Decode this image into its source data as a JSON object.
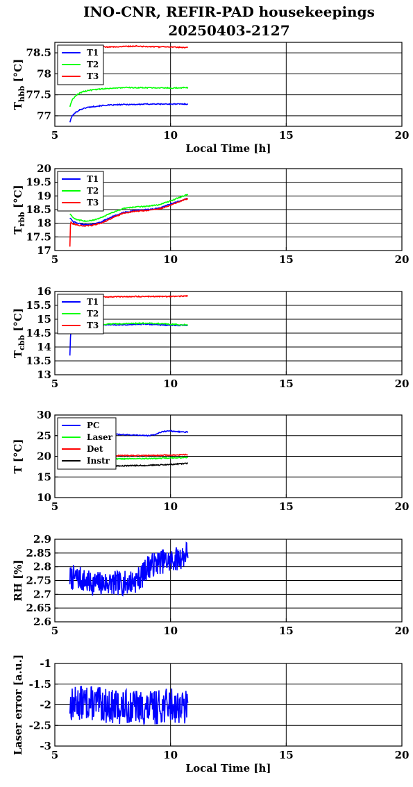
{
  "title_line1": "INO-CNR, REFIR-PAD housekeepings",
  "title_line2": "20250403-2127",
  "chart_data": [
    {
      "type": "line",
      "ylabel_main": "T",
      "ylabel_sub": "hbb",
      "ylabel_suffix": "[°C]",
      "xlabel": "Local Time [h]",
      "xlim": [
        5,
        20
      ],
      "xticks": [
        5,
        10,
        15,
        20
      ],
      "ylim": [
        76.75,
        78.75
      ],
      "yticks": [
        77,
        77.5,
        78,
        78.5
      ],
      "ytick_labels": [
        "77",
        "77.5",
        "78",
        "78.5"
      ],
      "grid": true,
      "legend_position": "top-left",
      "series": [
        {
          "name": "T1",
          "color": "#0000ff",
          "x": [
            5.65,
            5.75,
            5.9,
            6.1,
            6.4,
            6.8,
            7.2,
            7.6,
            8.0,
            8.5,
            9.0,
            9.5,
            10.0,
            10.5,
            10.75
          ],
          "y": [
            76.85,
            77.0,
            77.08,
            77.15,
            77.2,
            77.23,
            77.25,
            77.26,
            77.27,
            77.27,
            77.28,
            77.28,
            77.28,
            77.28,
            77.28
          ]
        },
        {
          "name": "T2",
          "color": "#00ff00",
          "x": [
            5.65,
            5.75,
            5.9,
            6.1,
            6.4,
            6.8,
            7.2,
            7.6,
            8.0,
            8.5,
            9.0,
            9.5,
            10.0,
            10.5,
            10.75
          ],
          "y": [
            77.22,
            77.38,
            77.48,
            77.55,
            77.6,
            77.63,
            77.65,
            77.66,
            77.67,
            77.67,
            77.67,
            77.67,
            77.66,
            77.67,
            77.67
          ]
        },
        {
          "name": "T3",
          "color": "#ff0000",
          "x": [
            5.65,
            6.0,
            6.5,
            7.0,
            7.5,
            8.0,
            8.5,
            9.0,
            9.5,
            10.0,
            10.5,
            10.75
          ],
          "y": [
            78.63,
            78.62,
            78.63,
            78.64,
            78.64,
            78.65,
            78.66,
            78.65,
            78.64,
            78.64,
            78.63,
            78.63
          ]
        }
      ]
    },
    {
      "type": "line",
      "ylabel_main": "T",
      "ylabel_sub": "rbb",
      "ylabel_suffix": "[°C]",
      "xlabel": "",
      "xlim": [
        5,
        20
      ],
      "xticks": [
        5,
        10,
        15,
        20
      ],
      "ylim": [
        17,
        20
      ],
      "yticks": [
        17,
        17.5,
        18,
        18.5,
        19,
        19.5,
        20
      ],
      "ytick_labels": [
        "17",
        "17.5",
        "18",
        "18.5",
        "19",
        "19.5",
        "20"
      ],
      "grid": true,
      "legend_position": "top-left",
      "series": [
        {
          "name": "T1",
          "color": "#0000ff",
          "x": [
            5.65,
            5.8,
            6.0,
            6.3,
            6.6,
            7.0,
            7.5,
            8.0,
            8.5,
            9.0,
            9.5,
            10.0,
            10.5,
            10.75
          ],
          "y": [
            18.2,
            18.05,
            18.0,
            17.95,
            17.95,
            18.05,
            18.25,
            18.4,
            18.47,
            18.5,
            18.55,
            18.7,
            18.85,
            18.92
          ]
        },
        {
          "name": "T2",
          "color": "#00ff00",
          "x": [
            5.65,
            5.8,
            6.0,
            6.3,
            6.6,
            7.0,
            7.5,
            8.0,
            8.5,
            9.0,
            9.5,
            10.0,
            10.5,
            10.75
          ],
          "y": [
            18.35,
            18.2,
            18.12,
            18.08,
            18.1,
            18.2,
            18.4,
            18.55,
            18.6,
            18.62,
            18.68,
            18.82,
            18.98,
            19.05
          ]
        },
        {
          "name": "T3",
          "color": "#ff0000",
          "x": [
            5.65,
            5.68,
            5.72,
            5.8,
            6.0,
            6.3,
            6.6,
            7.0,
            7.5,
            8.0,
            8.5,
            9.0,
            9.5,
            10.0,
            10.5,
            10.75
          ],
          "y": [
            17.15,
            18.1,
            18.0,
            17.98,
            17.93,
            17.9,
            17.92,
            18.0,
            18.2,
            18.38,
            18.44,
            18.47,
            18.52,
            18.66,
            18.83,
            18.9
          ]
        }
      ]
    },
    {
      "type": "line",
      "ylabel_main": "T",
      "ylabel_sub": "cbb",
      "ylabel_suffix": "[°C]",
      "xlabel": "",
      "xlim": [
        5,
        20
      ],
      "xticks": [
        5,
        10,
        15,
        20
      ],
      "ylim": [
        13,
        16
      ],
      "yticks": [
        13,
        13.5,
        14,
        14.5,
        15,
        15.5,
        16
      ],
      "ytick_labels": [
        "13",
        "13.5",
        "14",
        "14.5",
        "15",
        "15.5",
        "16"
      ],
      "grid": true,
      "legend_position": "top-left",
      "series": [
        {
          "name": "T1",
          "color": "#0000ff",
          "x": [
            5.65,
            5.67,
            5.7,
            5.75,
            5.85,
            6.0,
            6.5,
            7.0,
            7.5,
            8.0,
            8.5,
            9.0,
            9.5,
            10.0,
            10.5,
            10.75
          ],
          "y": [
            13.7,
            14.3,
            14.6,
            14.75,
            14.78,
            14.8,
            14.8,
            14.8,
            14.8,
            14.8,
            14.82,
            14.82,
            14.8,
            14.78,
            14.78,
            14.78
          ]
        },
        {
          "name": "T2",
          "color": "#00ff00",
          "x": [
            5.65,
            6.0,
            6.5,
            7.0,
            7.5,
            8.0,
            8.5,
            9.0,
            9.5,
            10.0,
            10.5,
            10.75
          ],
          "y": [
            14.8,
            14.82,
            14.83,
            14.82,
            14.83,
            14.84,
            14.85,
            14.86,
            14.84,
            14.82,
            14.8,
            14.8
          ]
        },
        {
          "name": "T3",
          "color": "#ff0000",
          "x": [
            5.65,
            6.0,
            6.5,
            7.0,
            7.5,
            8.0,
            8.5,
            9.0,
            9.5,
            10.0,
            10.5,
            10.75
          ],
          "y": [
            15.8,
            15.79,
            15.8,
            15.8,
            15.81,
            15.81,
            15.82,
            15.82,
            15.82,
            15.82,
            15.83,
            15.84
          ]
        }
      ]
    },
    {
      "type": "line",
      "ylabel_main": "T",
      "ylabel_sub": "",
      "ylabel_suffix": "[°C]",
      "xlabel": "",
      "xlim": [
        5,
        20
      ],
      "xticks": [
        5,
        10,
        15,
        20
      ],
      "ylim": [
        10,
        30
      ],
      "yticks": [
        10,
        15,
        20,
        25,
        30
      ],
      "ytick_labels": [
        "10",
        "15",
        "20",
        "25",
        "30"
      ],
      "grid": true,
      "legend_position": "top-left",
      "series": [
        {
          "name": "PC",
          "color": "#0000ff",
          "x": [
            5.65,
            6.0,
            6.5,
            7.0,
            7.5,
            8.0,
            8.5,
            9.0,
            9.3,
            9.6,
            9.9,
            10.2,
            10.5,
            10.75
          ],
          "y": [
            25.5,
            25.5,
            25.5,
            25.4,
            25.35,
            25.25,
            25.15,
            25.0,
            25.2,
            25.9,
            26.2,
            26.0,
            25.9,
            25.9
          ]
        },
        {
          "name": "Laser",
          "color": "#00ff00",
          "x": [
            5.65,
            6.0,
            6.5,
            7.0,
            7.5,
            8.0,
            8.5,
            9.0,
            9.5,
            10.0,
            10.5,
            10.75
          ],
          "y": [
            19.3,
            19.3,
            19.35,
            19.35,
            19.4,
            19.4,
            19.45,
            19.45,
            19.5,
            19.6,
            19.7,
            19.7
          ]
        },
        {
          "name": "Det",
          "color": "#ff0000",
          "x": [
            5.65,
            6.0,
            6.5,
            7.0,
            7.5,
            8.0,
            8.5,
            9.0,
            9.5,
            10.0,
            10.5,
            10.75
          ],
          "y": [
            20.1,
            20.1,
            20.15,
            20.15,
            20.2,
            20.2,
            20.2,
            20.2,
            20.25,
            20.3,
            20.35,
            20.4
          ]
        },
        {
          "name": "Instr",
          "color": "#000000",
          "x": [
            5.65,
            6.0,
            6.3,
            6.6,
            7.0,
            7.5,
            8.0,
            8.5,
            9.0,
            9.5,
            10.0,
            10.5,
            10.75
          ],
          "y": [
            17.8,
            17.5,
            17.4,
            17.5,
            17.6,
            17.7,
            17.7,
            17.75,
            17.8,
            17.9,
            18.0,
            18.2,
            18.3
          ]
        }
      ]
    },
    {
      "type": "line",
      "ylabel_main": "RH [%]",
      "ylabel_sub": "",
      "ylabel_suffix": "",
      "xlabel": "",
      "xlim": [
        5,
        20
      ],
      "xticks": [
        5,
        10,
        15,
        20
      ],
      "ylim": [
        2.6,
        2.9
      ],
      "yticks": [
        2.6,
        2.65,
        2.7,
        2.75,
        2.8,
        2.85,
        2.9
      ],
      "ytick_labels": [
        "2.6",
        "2.65",
        "2.7",
        "2.75",
        "2.8",
        "2.85",
        "2.9"
      ],
      "grid": true,
      "legend_position": "none",
      "noise": {
        "amp": 0.045,
        "seed": 7
      },
      "series": [
        {
          "name": "",
          "color": "#0000ff",
          "x": [
            5.65,
            6.0,
            6.5,
            7.0,
            7.5,
            8.0,
            8.5,
            8.8,
            9.0,
            9.3,
            9.6,
            10.0,
            10.3,
            10.6,
            10.75
          ],
          "y": [
            2.76,
            2.76,
            2.74,
            2.74,
            2.74,
            2.74,
            2.75,
            2.77,
            2.8,
            2.81,
            2.82,
            2.82,
            2.83,
            2.84,
            2.86
          ]
        }
      ]
    },
    {
      "type": "line",
      "ylabel_main": "Laser error [a.u.]",
      "ylabel_sub": "",
      "ylabel_suffix": "",
      "xlabel": "Local Time [h]",
      "xlim": [
        5,
        20
      ],
      "xticks": [
        5,
        10,
        15,
        20
      ],
      "ylim": [
        -3,
        -1
      ],
      "yticks": [
        -3,
        -2.5,
        -2,
        -1.5,
        -1
      ],
      "ytick_labels": [
        "-3",
        "-2.5",
        "-2",
        "-1.5",
        "-1"
      ],
      "grid": true,
      "legend_position": "none",
      "noise": {
        "amp": 0.42,
        "seed": 13
      },
      "series": [
        {
          "name": "",
          "color": "#0000ff",
          "x": [
            5.65,
            6.0,
            6.5,
            7.0,
            7.5,
            8.0,
            8.5,
            9.0,
            9.5,
            10.0,
            10.5,
            10.75
          ],
          "y": [
            -2.0,
            -1.95,
            -1.95,
            -2.0,
            -2.05,
            -2.05,
            -2.05,
            -2.1,
            -2.05,
            -2.0,
            -2.05,
            -2.1
          ]
        }
      ]
    }
  ]
}
